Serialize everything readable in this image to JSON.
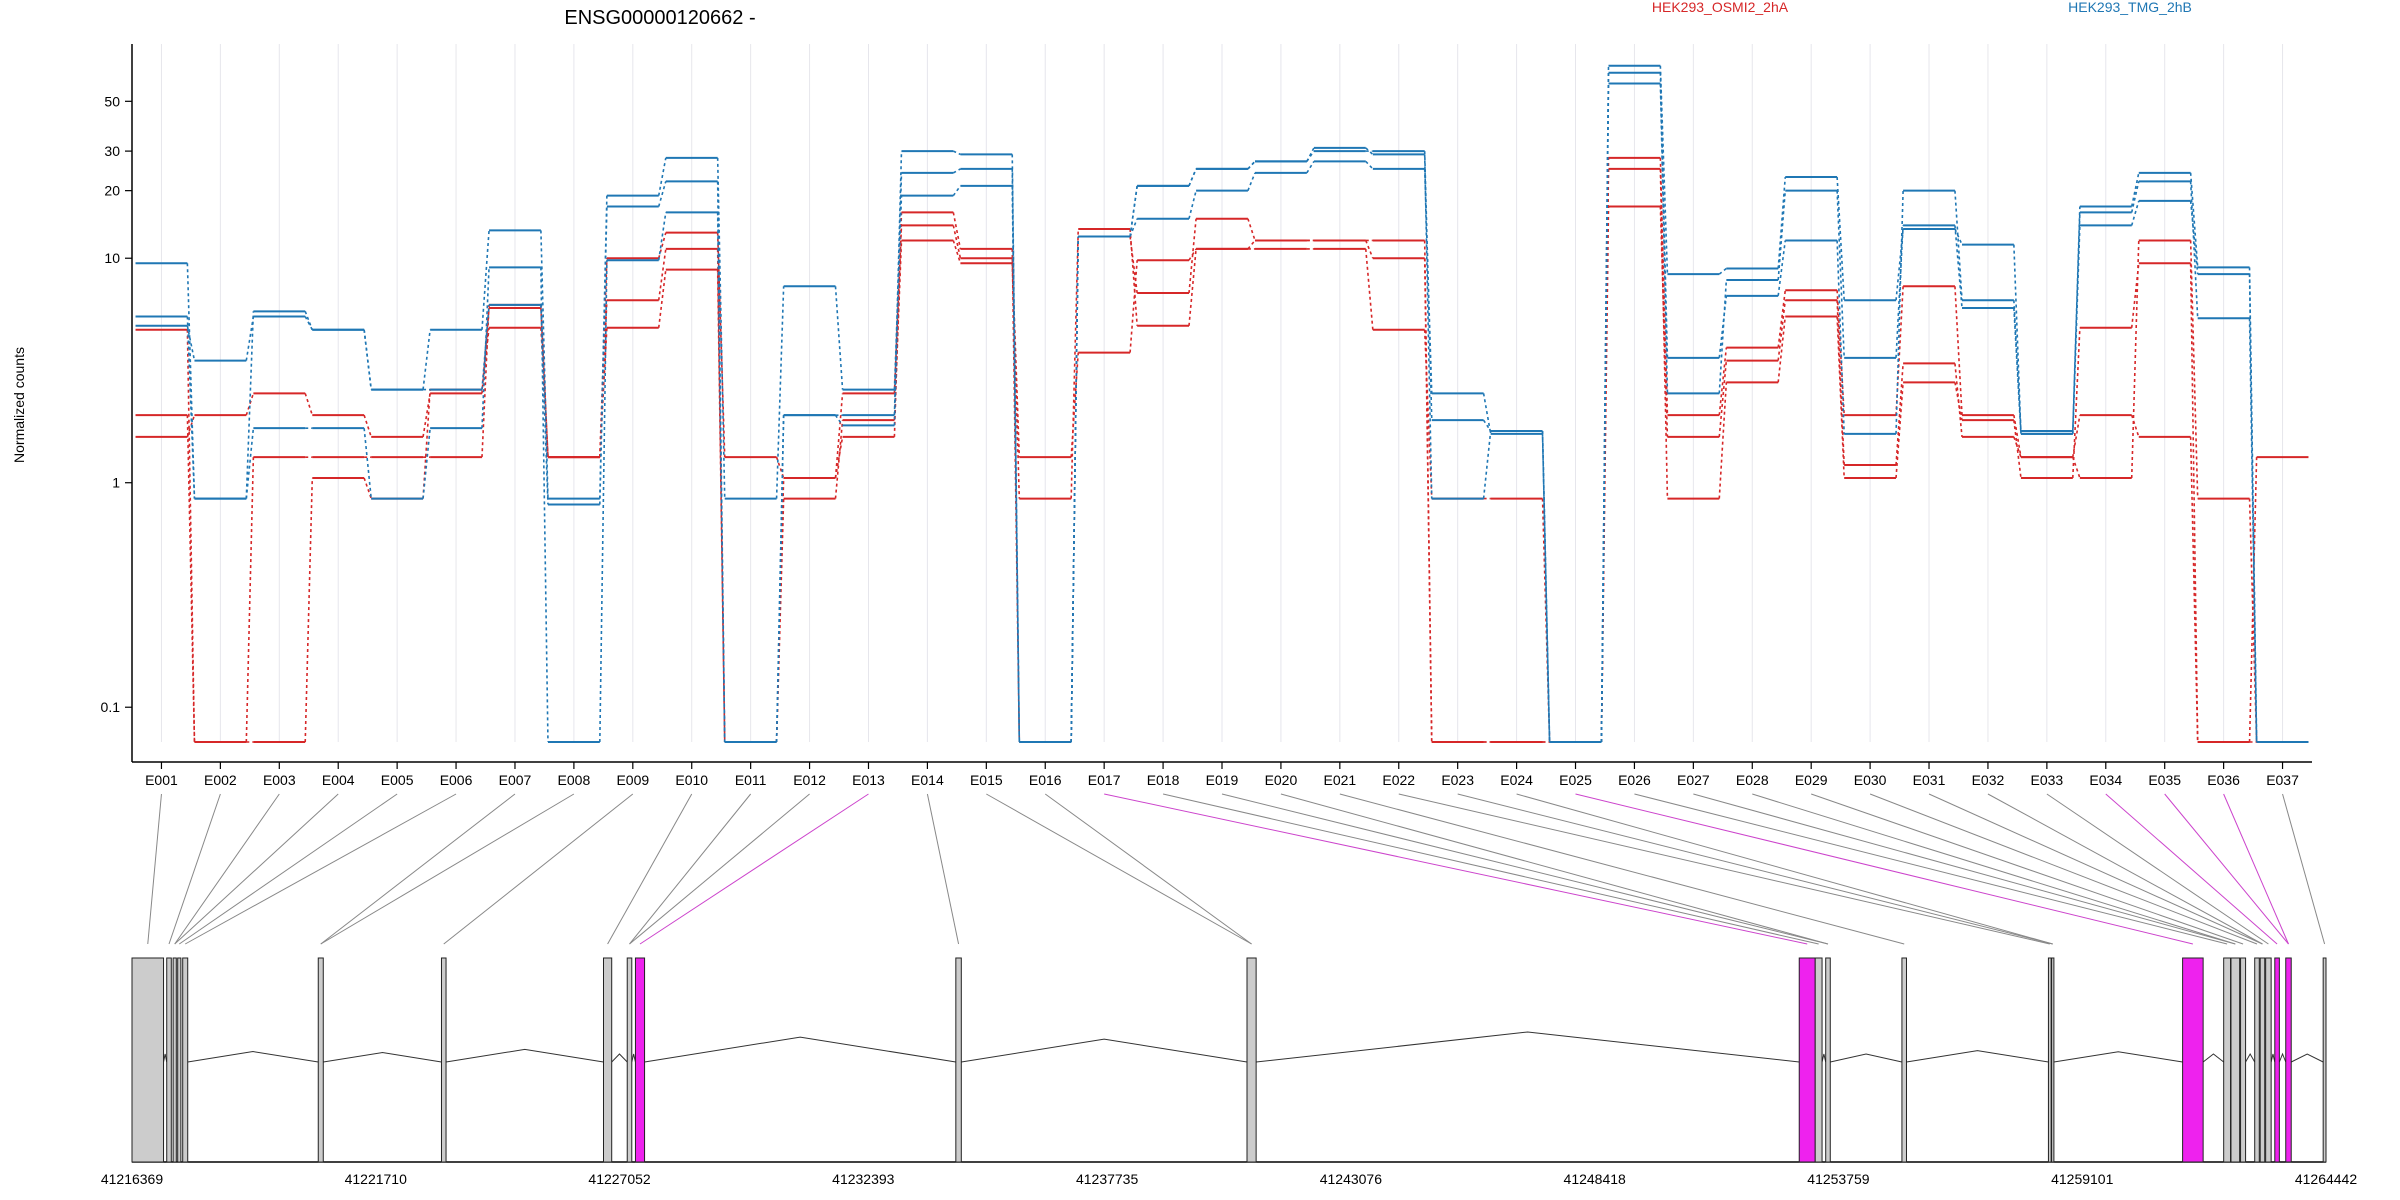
{
  "chart_data": {
    "type": "line",
    "title": "ENSG00000120662 -",
    "ylabel": "Normalized counts",
    "yscale": "log",
    "ylim": [
      0.07,
      90
    ],
    "y_ticks": [
      0.1,
      1,
      10,
      20,
      30,
      50
    ],
    "y_tick_labels": [
      "0.1",
      "1",
      "10",
      "20",
      "30",
      "50"
    ],
    "categories": [
      "E001",
      "E002",
      "E003",
      "E004",
      "E005",
      "E006",
      "E007",
      "E008",
      "E009",
      "E010",
      "E011",
      "E012",
      "E013",
      "E014",
      "E015",
      "E016",
      "E017",
      "E018",
      "E019",
      "E020",
      "E021",
      "E022",
      "E023",
      "E024",
      "E025",
      "E026",
      "E027",
      "E028",
      "E029",
      "E030",
      "E031",
      "E032",
      "E033",
      "E034",
      "E035",
      "E036",
      "E037"
    ],
    "series": [
      {
        "name": "HEK293_OSMI2_2hA",
        "color": "#d62728",
        "values": [
          4.8,
          0.07,
          0.07,
          1.05,
          0.85,
          2.6,
          4.9,
          1.3,
          4.9,
          8.9,
          0.07,
          0.85,
          1.9,
          12,
          9.5,
          0.85,
          13.5,
          5.0,
          11,
          12,
          12,
          10,
          0.07,
          0.07,
          0.07,
          25,
          0.85,
          2.8,
          5.5,
          1.05,
          2.8,
          1.9,
          1.05,
          4.9,
          9.5,
          0.07,
          1.3
        ]
      },
      {
        "color": "#d62728",
        "values": [
          2.0,
          0.07,
          1.3,
          1.3,
          1.3,
          1.3,
          6.2,
          1.3,
          6.5,
          11,
          0.07,
          1.05,
          1.6,
          16,
          11,
          0.07,
          12.5,
          7.0,
          15,
          12,
          12,
          12,
          0.07,
          0.07,
          0.07,
          17,
          1.6,
          3.5,
          6.5,
          1.2,
          3.4,
          1.6,
          1.3,
          1.05,
          12,
          0.85,
          0.07
        ]
      },
      {
        "color": "#d62728",
        "values": [
          1.6,
          2.0,
          2.5,
          2.0,
          1.6,
          2.5,
          6.0,
          1.3,
          10,
          13,
          1.3,
          1.05,
          2.5,
          14,
          10,
          1.3,
          3.8,
          9.8,
          11,
          11,
          11,
          4.8,
          0.85,
          0.85,
          0.07,
          28,
          2.0,
          4.0,
          7.2,
          2.0,
          7.5,
          2.0,
          1.3,
          2.0,
          1.6,
          0.07,
          0.07
        ]
      },
      {
        "color": "#1f77b4",
        "values": [
          9.5,
          0.85,
          1.75,
          1.75,
          0.85,
          1.75,
          9.1,
          0.07,
          9.8,
          16,
          0.07,
          2.0,
          2.0,
          30,
          29,
          0.07,
          12.5,
          21,
          25,
          27,
          31,
          29,
          0.85,
          1.7,
          0.07,
          67,
          3.6,
          6.8,
          12,
          1.65,
          20,
          6.5,
          1.7,
          17,
          24,
          9.1,
          0.07
        ]
      },
      {
        "color": "#1f77b4",
        "values": [
          5.5,
          0.85,
          5.8,
          4.8,
          2.6,
          2.6,
          6.2,
          0.8,
          17,
          22,
          0.07,
          2.0,
          1.8,
          24,
          25,
          0.07,
          12.5,
          15,
          20,
          24,
          27,
          25,
          2.5,
          1.65,
          0.07,
          60,
          2.5,
          8.0,
          20,
          3.6,
          14,
          6.0,
          1.65,
          16,
          22,
          5.4,
          0.07
        ]
      },
      {
        "name": "HEK293_TMG_2hB",
        "color": "#1f77b4",
        "values": [
          5.0,
          3.5,
          5.5,
          4.8,
          2.6,
          4.8,
          13.3,
          0.85,
          19,
          28,
          0.85,
          7.5,
          2.6,
          19,
          21,
          0.07,
          12.5,
          21,
          25,
          27,
          30,
          30,
          1.9,
          1.7,
          0.07,
          72,
          8.5,
          9.0,
          23,
          6.5,
          13.5,
          11.5,
          1.65,
          14,
          18,
          8.5,
          0.07
        ]
      }
    ],
    "legend": {
      "position": "top"
    },
    "genomic_axis": {
      "ticks": [
        41216369,
        41221710,
        41227052,
        41232393,
        41237735,
        41243076,
        41248418,
        41253759,
        41259101,
        41264442
      ]
    },
    "exons": [
      {
        "start": 41216369,
        "end": 41217060,
        "highlight": false
      },
      {
        "start": 41217130,
        "end": 41217230,
        "highlight": false
      },
      {
        "start": 41217270,
        "end": 41217340,
        "highlight": false
      },
      {
        "start": 41217370,
        "end": 41217440,
        "highlight": false
      },
      {
        "start": 41217480,
        "end": 41217590,
        "highlight": false
      },
      {
        "start": 41220450,
        "end": 41220560,
        "highlight": false
      },
      {
        "start": 41223150,
        "end": 41223250,
        "highlight": false
      },
      {
        "start": 41226700,
        "end": 41226880,
        "highlight": false
      },
      {
        "start": 41227220,
        "end": 41227320,
        "highlight": false
      },
      {
        "start": 41227400,
        "end": 41227600,
        "highlight": true
      },
      {
        "start": 41234420,
        "end": 41234540,
        "highlight": false
      },
      {
        "start": 41240800,
        "end": 41241000,
        "highlight": false
      },
      {
        "start": 41252900,
        "end": 41253250,
        "highlight": true
      },
      {
        "start": 41253250,
        "end": 41253400,
        "highlight": false
      },
      {
        "start": 41253480,
        "end": 41253580,
        "highlight": false
      },
      {
        "start": 41255150,
        "end": 41255250,
        "highlight": false
      },
      {
        "start": 41258360,
        "end": 41258420,
        "highlight": false
      },
      {
        "start": 41258430,
        "end": 41258480,
        "highlight": false
      },
      {
        "start": 41261300,
        "end": 41261750,
        "highlight": true
      },
      {
        "start": 41262200,
        "end": 41262350,
        "highlight": false
      },
      {
        "start": 41262360,
        "end": 41262550,
        "highlight": false
      },
      {
        "start": 41262570,
        "end": 41262680,
        "highlight": false
      },
      {
        "start": 41262880,
        "end": 41262980,
        "highlight": false
      },
      {
        "start": 41263000,
        "end": 41263100,
        "highlight": false
      },
      {
        "start": 41263120,
        "end": 41263240,
        "highlight": false
      },
      {
        "start": 41263320,
        "end": 41263420,
        "highlight": true
      },
      {
        "start": 41263560,
        "end": 41263680,
        "highlight": true
      },
      {
        "start": 41264380,
        "end": 41264442,
        "highlight": false
      }
    ],
    "highlight_color": "#ee22ee",
    "exon_color": "#cccccc"
  }
}
